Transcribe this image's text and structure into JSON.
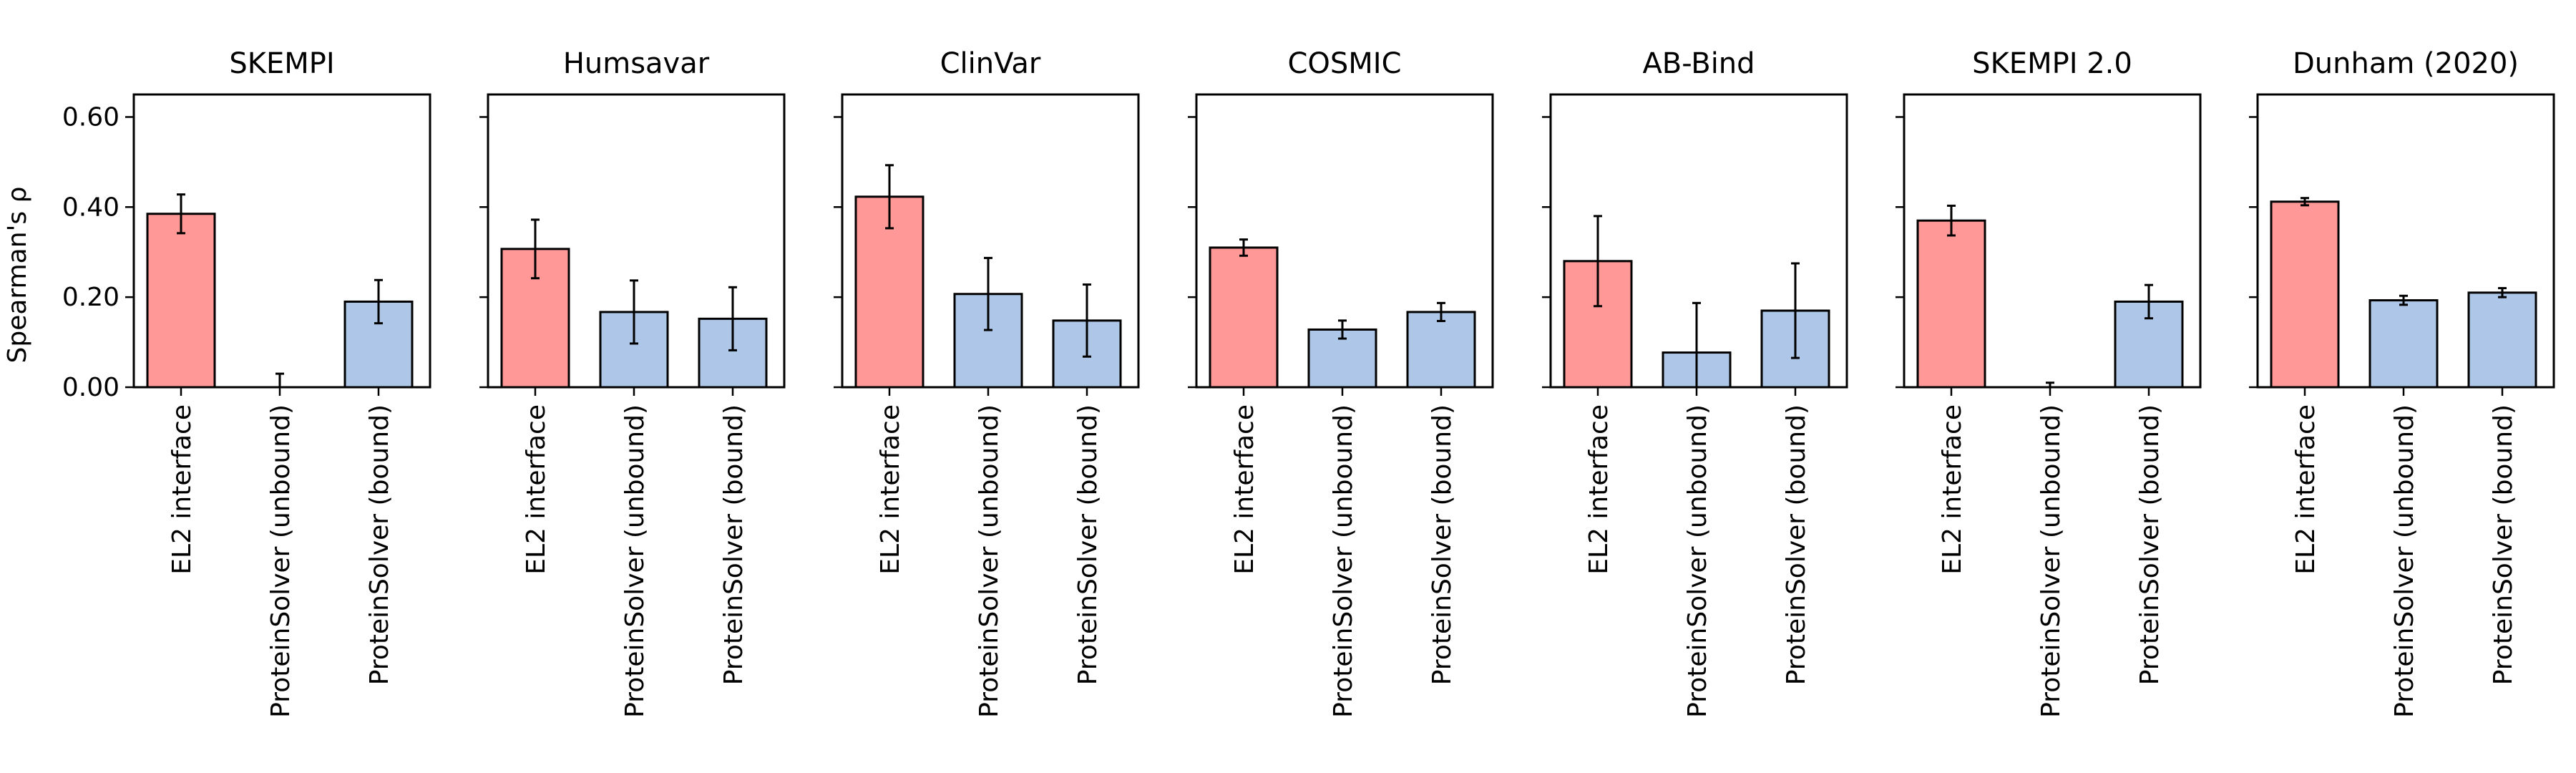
{
  "chart_data": {
    "type": "bar",
    "ylabel": "Spearman's ρ",
    "ylim": [
      0,
      0.65
    ],
    "yticks": [
      "0.00",
      "0.20",
      "0.40",
      "0.60"
    ],
    "ytick_values": [
      0,
      0.2,
      0.4,
      0.6
    ],
    "categories": [
      "EL2 interface",
      "ProteinSolver (unbound)",
      "ProteinSolver (bound)"
    ],
    "colors": {
      "EL2 interface": "#ff9896",
      "ProteinSolver (unbound)": "#aec7e8",
      "ProteinSolver (bound)": "#aec7e8"
    },
    "grid": false,
    "panels": [
      {
        "title": "SKEMPI",
        "values": [
          0.385,
          0.0,
          0.19
        ],
        "errors": [
          0.043,
          0.03,
          0.048
        ]
      },
      {
        "title": "Humsavar",
        "values": [
          0.307,
          0.167,
          0.152
        ],
        "errors": [
          0.065,
          0.07,
          0.07
        ]
      },
      {
        "title": "ClinVar",
        "values": [
          0.423,
          0.207,
          0.148
        ],
        "errors": [
          0.07,
          0.08,
          0.08
        ]
      },
      {
        "title": "COSMIC",
        "values": [
          0.31,
          0.128,
          0.167
        ],
        "errors": [
          0.018,
          0.02,
          0.02
        ]
      },
      {
        "title": "AB-Bind",
        "values": [
          0.28,
          0.077,
          0.17
        ],
        "errors": [
          0.1,
          0.11,
          0.105
        ]
      },
      {
        "title": "SKEMPI 2.0",
        "values": [
          0.37,
          0.0,
          0.19
        ],
        "errors": [
          0.033,
          0.01,
          0.037
        ]
      },
      {
        "title": "Dunham (2020)",
        "values": [
          0.412,
          0.193,
          0.21
        ],
        "errors": [
          0.008,
          0.01,
          0.01
        ]
      }
    ]
  }
}
